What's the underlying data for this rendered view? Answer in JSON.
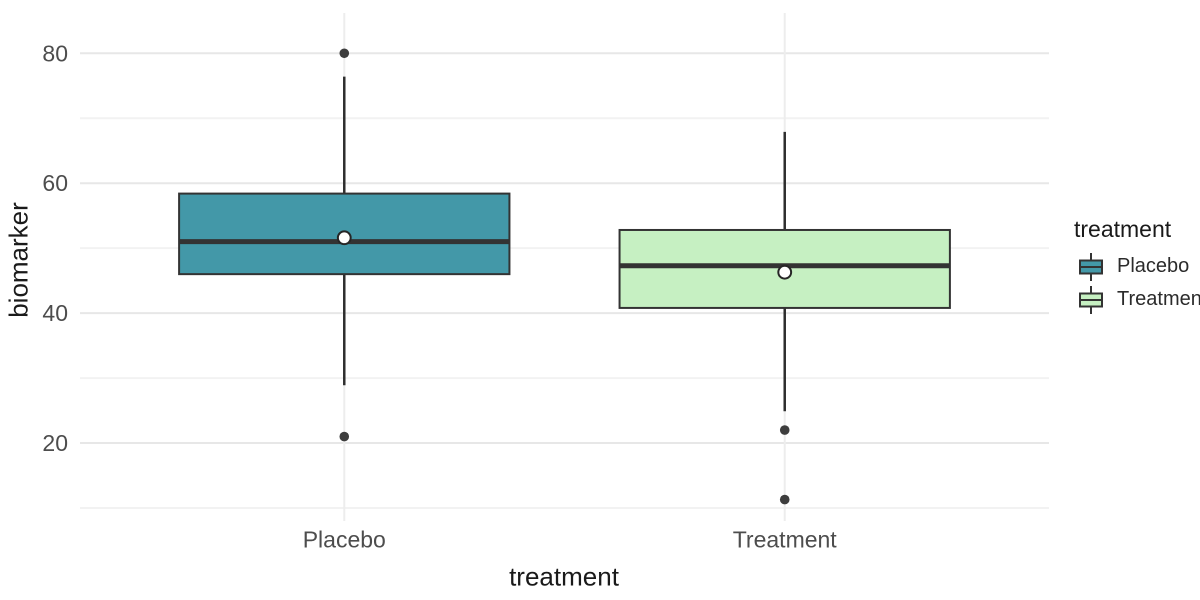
{
  "figure": {
    "background": "#FFFFFF"
  },
  "chart_data": {
    "type": "boxplot",
    "title": "",
    "xlabel": "treatment",
    "ylabel": "biomarker",
    "categories": [
      "Placebo",
      "Treatment"
    ],
    "y_axis": {
      "ticks": [
        20,
        40,
        60,
        80
      ],
      "minor_ticks": [
        10,
        30,
        50,
        70
      ],
      "range": [
        8,
        86.2
      ]
    },
    "grid": true,
    "legend": {
      "title": "treatment",
      "position": "right"
    },
    "groups": [
      {
        "name": "Placebo",
        "color": "#4398A8",
        "whisker_low": 28.9,
        "q1": 46.0,
        "median": 51.0,
        "q3": 58.4,
        "whisker_high": 76.4,
        "mean": 51.6,
        "outliers": [
          80,
          21
        ]
      },
      {
        "name": "Treatment",
        "color": "#C6F0C2",
        "whisker_low": 24.9,
        "q1": 40.8,
        "median": 47.3,
        "q3": 52.8,
        "whisker_high": 67.9,
        "mean": 46.3,
        "outliers": [
          22,
          11.3
        ]
      }
    ],
    "styles": {
      "box_stroke": "#333333",
      "median_color": "#333333",
      "whisker_color": "#2E2E2E",
      "outlier_color": "#3D3D3D",
      "mean_fill": "#FFFFFF",
      "mean_stroke": "#262626",
      "grid_major": "#E7E7E7",
      "grid_minor": "#F2F2F2",
      "grid_vertical": "#EDEDED",
      "tick_text": "#4D4D4D"
    }
  }
}
